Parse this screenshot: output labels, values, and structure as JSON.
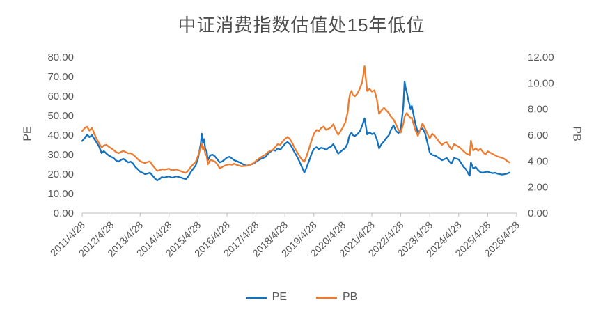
{
  "title": "中证消费指数估值处15年低位",
  "left_axis": {
    "title": "PE",
    "tick_labels": [
      "0.00",
      "10.00",
      "20.00",
      "30.00",
      "40.00",
      "50.00",
      "60.00",
      "70.00",
      "80.00"
    ],
    "min": 0,
    "max": 80
  },
  "right_axis": {
    "title": "PB",
    "tick_labels": [
      "0.00",
      "2.00",
      "4.00",
      "6.00",
      "8.00",
      "10.00",
      "12.00"
    ],
    "min": 0,
    "max": 12
  },
  "x_axis": {
    "labels": [
      "2011/4/28",
      "2012/4/28",
      "2013/4/28",
      "2014/4/28",
      "2015/4/28",
      "2016/4/28",
      "2017/4/28",
      "2018/4/28",
      "2019/4/28",
      "2020/4/28",
      "2021/4/28",
      "2022/4/28",
      "2023/4/28",
      "2024/4/28",
      "2025/4/28",
      "2026/4/28"
    ]
  },
  "legend": {
    "items": [
      {
        "label": "PE"
      },
      {
        "label": "PB"
      }
    ]
  },
  "colors": {
    "pe_line": "#1371BE",
    "pb_line": "#ED7C31",
    "axis_text": "#595959",
    "title_text": "#4d4d4d",
    "axis_line": "#BFBFBF"
  },
  "chart_data": {
    "type": "line",
    "title": "中证消费指数估值处15年低位",
    "x_range": [
      2011.33,
      2026.33
    ],
    "x_tick_years": [
      2011.33,
      2012.33,
      2013.33,
      2014.33,
      2015.33,
      2016.33,
      2017.33,
      2018.33,
      2019.33,
      2020.33,
      2021.33,
      2022.33,
      2023.33,
      2024.33,
      2025.33,
      2026.33
    ],
    "left_ylim": [
      0,
      80
    ],
    "right_ylim": [
      0,
      12
    ],
    "grid": false,
    "legend_position": "bottom",
    "x": [
      2011.33,
      2011.42,
      2011.5,
      2011.58,
      2011.67,
      2011.75,
      2011.83,
      2011.92,
      2012.0,
      2012.08,
      2012.17,
      2012.25,
      2012.33,
      2012.42,
      2012.5,
      2012.58,
      2012.67,
      2012.75,
      2012.83,
      2012.92,
      2013.0,
      2013.08,
      2013.17,
      2013.25,
      2013.33,
      2013.42,
      2013.5,
      2013.58,
      2013.67,
      2013.75,
      2013.83,
      2013.92,
      2014.0,
      2014.08,
      2014.17,
      2014.25,
      2014.33,
      2014.42,
      2014.5,
      2014.58,
      2014.67,
      2014.75,
      2014.83,
      2014.92,
      2015.0,
      2015.08,
      2015.17,
      2015.25,
      2015.33,
      2015.42,
      2015.46,
      2015.5,
      2015.54,
      2015.58,
      2015.63,
      2015.67,
      2015.75,
      2015.83,
      2015.92,
      2016.0,
      2016.08,
      2016.17,
      2016.25,
      2016.33,
      2016.42,
      2016.5,
      2016.58,
      2016.67,
      2016.75,
      2016.83,
      2016.92,
      2017.0,
      2017.08,
      2017.17,
      2017.25,
      2017.33,
      2017.42,
      2017.5,
      2017.58,
      2017.67,
      2017.75,
      2017.83,
      2017.92,
      2018.0,
      2018.08,
      2018.17,
      2018.25,
      2018.33,
      2018.42,
      2018.5,
      2018.58,
      2018.67,
      2018.75,
      2018.83,
      2018.92,
      2019.0,
      2019.08,
      2019.17,
      2019.25,
      2019.33,
      2019.42,
      2019.5,
      2019.58,
      2019.67,
      2019.75,
      2019.83,
      2019.92,
      2020.0,
      2020.08,
      2020.17,
      2020.25,
      2020.33,
      2020.42,
      2020.5,
      2020.54,
      2020.58,
      2020.63,
      2020.67,
      2020.75,
      2020.83,
      2020.92,
      2021.0,
      2021.08,
      2021.13,
      2021.17,
      2021.25,
      2021.33,
      2021.42,
      2021.5,
      2021.58,
      2021.67,
      2021.75,
      2021.83,
      2021.92,
      2022.0,
      2022.08,
      2022.17,
      2022.25,
      2022.33,
      2022.42,
      2022.46,
      2022.5,
      2022.54,
      2022.58,
      2022.67,
      2022.71,
      2022.75,
      2022.83,
      2022.92,
      2023.0,
      2023.08,
      2023.17,
      2023.25,
      2023.33,
      2023.42,
      2023.5,
      2023.58,
      2023.67,
      2023.75,
      2023.83,
      2023.92,
      2024.0,
      2024.08,
      2024.17,
      2024.25,
      2024.33,
      2024.42,
      2024.5,
      2024.58,
      2024.67,
      2024.71,
      2024.75,
      2024.83,
      2024.92,
      2025.0,
      2025.08,
      2025.17,
      2025.25,
      2025.33,
      2025.42,
      2025.5,
      2025.58,
      2025.67,
      2025.75,
      2025.83,
      2025.92,
      2026.0,
      2026.08
    ],
    "series": [
      {
        "name": "PE",
        "axis": "left",
        "color": "#1371BE",
        "values": [
          37.0,
          38.5,
          40.3,
          39.0,
          40.0,
          38.0,
          36.2,
          34.0,
          30.8,
          31.8,
          30.5,
          29.5,
          28.9,
          28.2,
          27.0,
          26.4,
          27.2,
          27.9,
          27.0,
          26.0,
          26.4,
          25.5,
          23.6,
          22.5,
          21.3,
          20.7,
          20.0,
          20.3,
          20.7,
          19.5,
          18.0,
          16.8,
          17.5,
          18.5,
          18.2,
          18.6,
          18.9,
          18.2,
          18.4,
          18.9,
          18.5,
          18.2,
          17.8,
          17.5,
          19.0,
          21.1,
          22.9,
          24.5,
          28.0,
          35.0,
          40.7,
          36.0,
          38.0,
          33.0,
          31.8,
          27.1,
          29.6,
          30.0,
          29.0,
          27.5,
          26.0,
          26.5,
          27.5,
          28.5,
          28.9,
          28.0,
          27.1,
          26.6,
          26.1,
          25.5,
          24.8,
          24.3,
          24.6,
          25.0,
          25.4,
          26.2,
          27.1,
          27.8,
          28.3,
          28.9,
          30.5,
          31.5,
          32.5,
          32.0,
          33.2,
          32.5,
          34.0,
          35.5,
          36.5,
          35.4,
          33.5,
          31.0,
          28.9,
          26.5,
          23.5,
          20.8,
          23.5,
          27.0,
          30.5,
          33.0,
          33.8,
          32.8,
          33.5,
          33.2,
          32.5,
          33.5,
          34.0,
          35.4,
          33.0,
          30.5,
          31.5,
          32.5,
          33.5,
          36.0,
          39.0,
          40.4,
          41.4,
          40.0,
          39.6,
          40.5,
          42.0,
          45.0,
          48.6,
          44.0,
          40.4,
          41.4,
          40.5,
          41.0,
          38.0,
          33.2,
          35.5,
          36.8,
          38.5,
          40.0,
          43.0,
          45.0,
          42.0,
          41.0,
          43.0,
          55.0,
          67.5,
          64.0,
          61.8,
          58.6,
          53.2,
          55.0,
          52.0,
          46.0,
          41.4,
          42.5,
          43.5,
          41.0,
          36.0,
          31.0,
          29.8,
          29.6,
          28.9,
          28.0,
          27.1,
          27.6,
          28.2,
          26.5,
          25.4,
          28.2,
          27.9,
          27.5,
          25.5,
          23.6,
          22.5,
          20.0,
          19.3,
          26.0,
          22.9,
          23.5,
          22.0,
          21.0,
          20.7,
          21.1,
          21.3,
          20.8,
          20.5,
          20.7,
          20.2,
          20.0,
          19.8,
          20.0,
          20.3,
          20.8
        ]
      },
      {
        "name": "PB",
        "axis": "right",
        "color": "#ED7C31",
        "values": [
          6.3,
          6.55,
          6.65,
          6.35,
          6.55,
          6.1,
          5.7,
          5.35,
          5.05,
          5.2,
          5.25,
          5.1,
          5.0,
          4.85,
          4.7,
          4.61,
          4.7,
          4.79,
          4.7,
          4.6,
          4.61,
          4.5,
          4.34,
          4.15,
          4.0,
          3.9,
          3.85,
          3.92,
          3.97,
          3.7,
          3.5,
          3.25,
          3.3,
          3.38,
          3.35,
          3.38,
          3.42,
          3.3,
          3.32,
          3.36,
          3.28,
          3.22,
          3.15,
          3.1,
          3.3,
          3.55,
          3.75,
          3.95,
          4.4,
          5.0,
          5.35,
          4.9,
          5.1,
          4.55,
          4.4,
          3.75,
          4.07,
          4.05,
          3.95,
          3.75,
          3.45,
          3.55,
          3.65,
          3.72,
          3.75,
          3.72,
          3.8,
          3.7,
          3.65,
          3.6,
          3.62,
          3.63,
          3.68,
          3.75,
          3.85,
          4.0,
          4.16,
          4.3,
          4.4,
          4.52,
          4.7,
          4.8,
          4.88,
          5.1,
          5.3,
          5.25,
          5.5,
          5.7,
          5.86,
          5.7,
          5.4,
          5.0,
          4.7,
          4.4,
          4.1,
          3.95,
          4.4,
          5.0,
          5.6,
          6.1,
          6.39,
          6.3,
          6.55,
          6.66,
          6.4,
          6.48,
          6.6,
          6.84,
          6.4,
          6.04,
          6.3,
          6.6,
          7.0,
          7.8,
          8.7,
          9.2,
          9.4,
          9.1,
          9.0,
          9.2,
          9.6,
          10.1,
          11.3,
          10.2,
          9.4,
          9.55,
          9.35,
          9.45,
          8.8,
          7.64,
          7.9,
          8.1,
          7.9,
          7.7,
          7.38,
          7.2,
          6.8,
          6.4,
          6.2,
          6.9,
          7.4,
          7.6,
          7.7,
          7.55,
          7.3,
          7.35,
          7.0,
          6.4,
          5.95,
          6.4,
          6.9,
          6.5,
          6.1,
          5.75,
          6.1,
          5.95,
          5.7,
          5.45,
          5.25,
          5.4,
          5.45,
          5.15,
          4.9,
          5.3,
          5.2,
          5.1,
          4.95,
          4.75,
          4.6,
          4.5,
          4.45,
          5.57,
          4.82,
          5.0,
          4.8,
          4.95,
          4.7,
          4.5,
          4.75,
          4.65,
          4.55,
          4.45,
          4.35,
          4.3,
          4.25,
          4.15,
          4.0,
          3.9
        ]
      }
    ]
  }
}
